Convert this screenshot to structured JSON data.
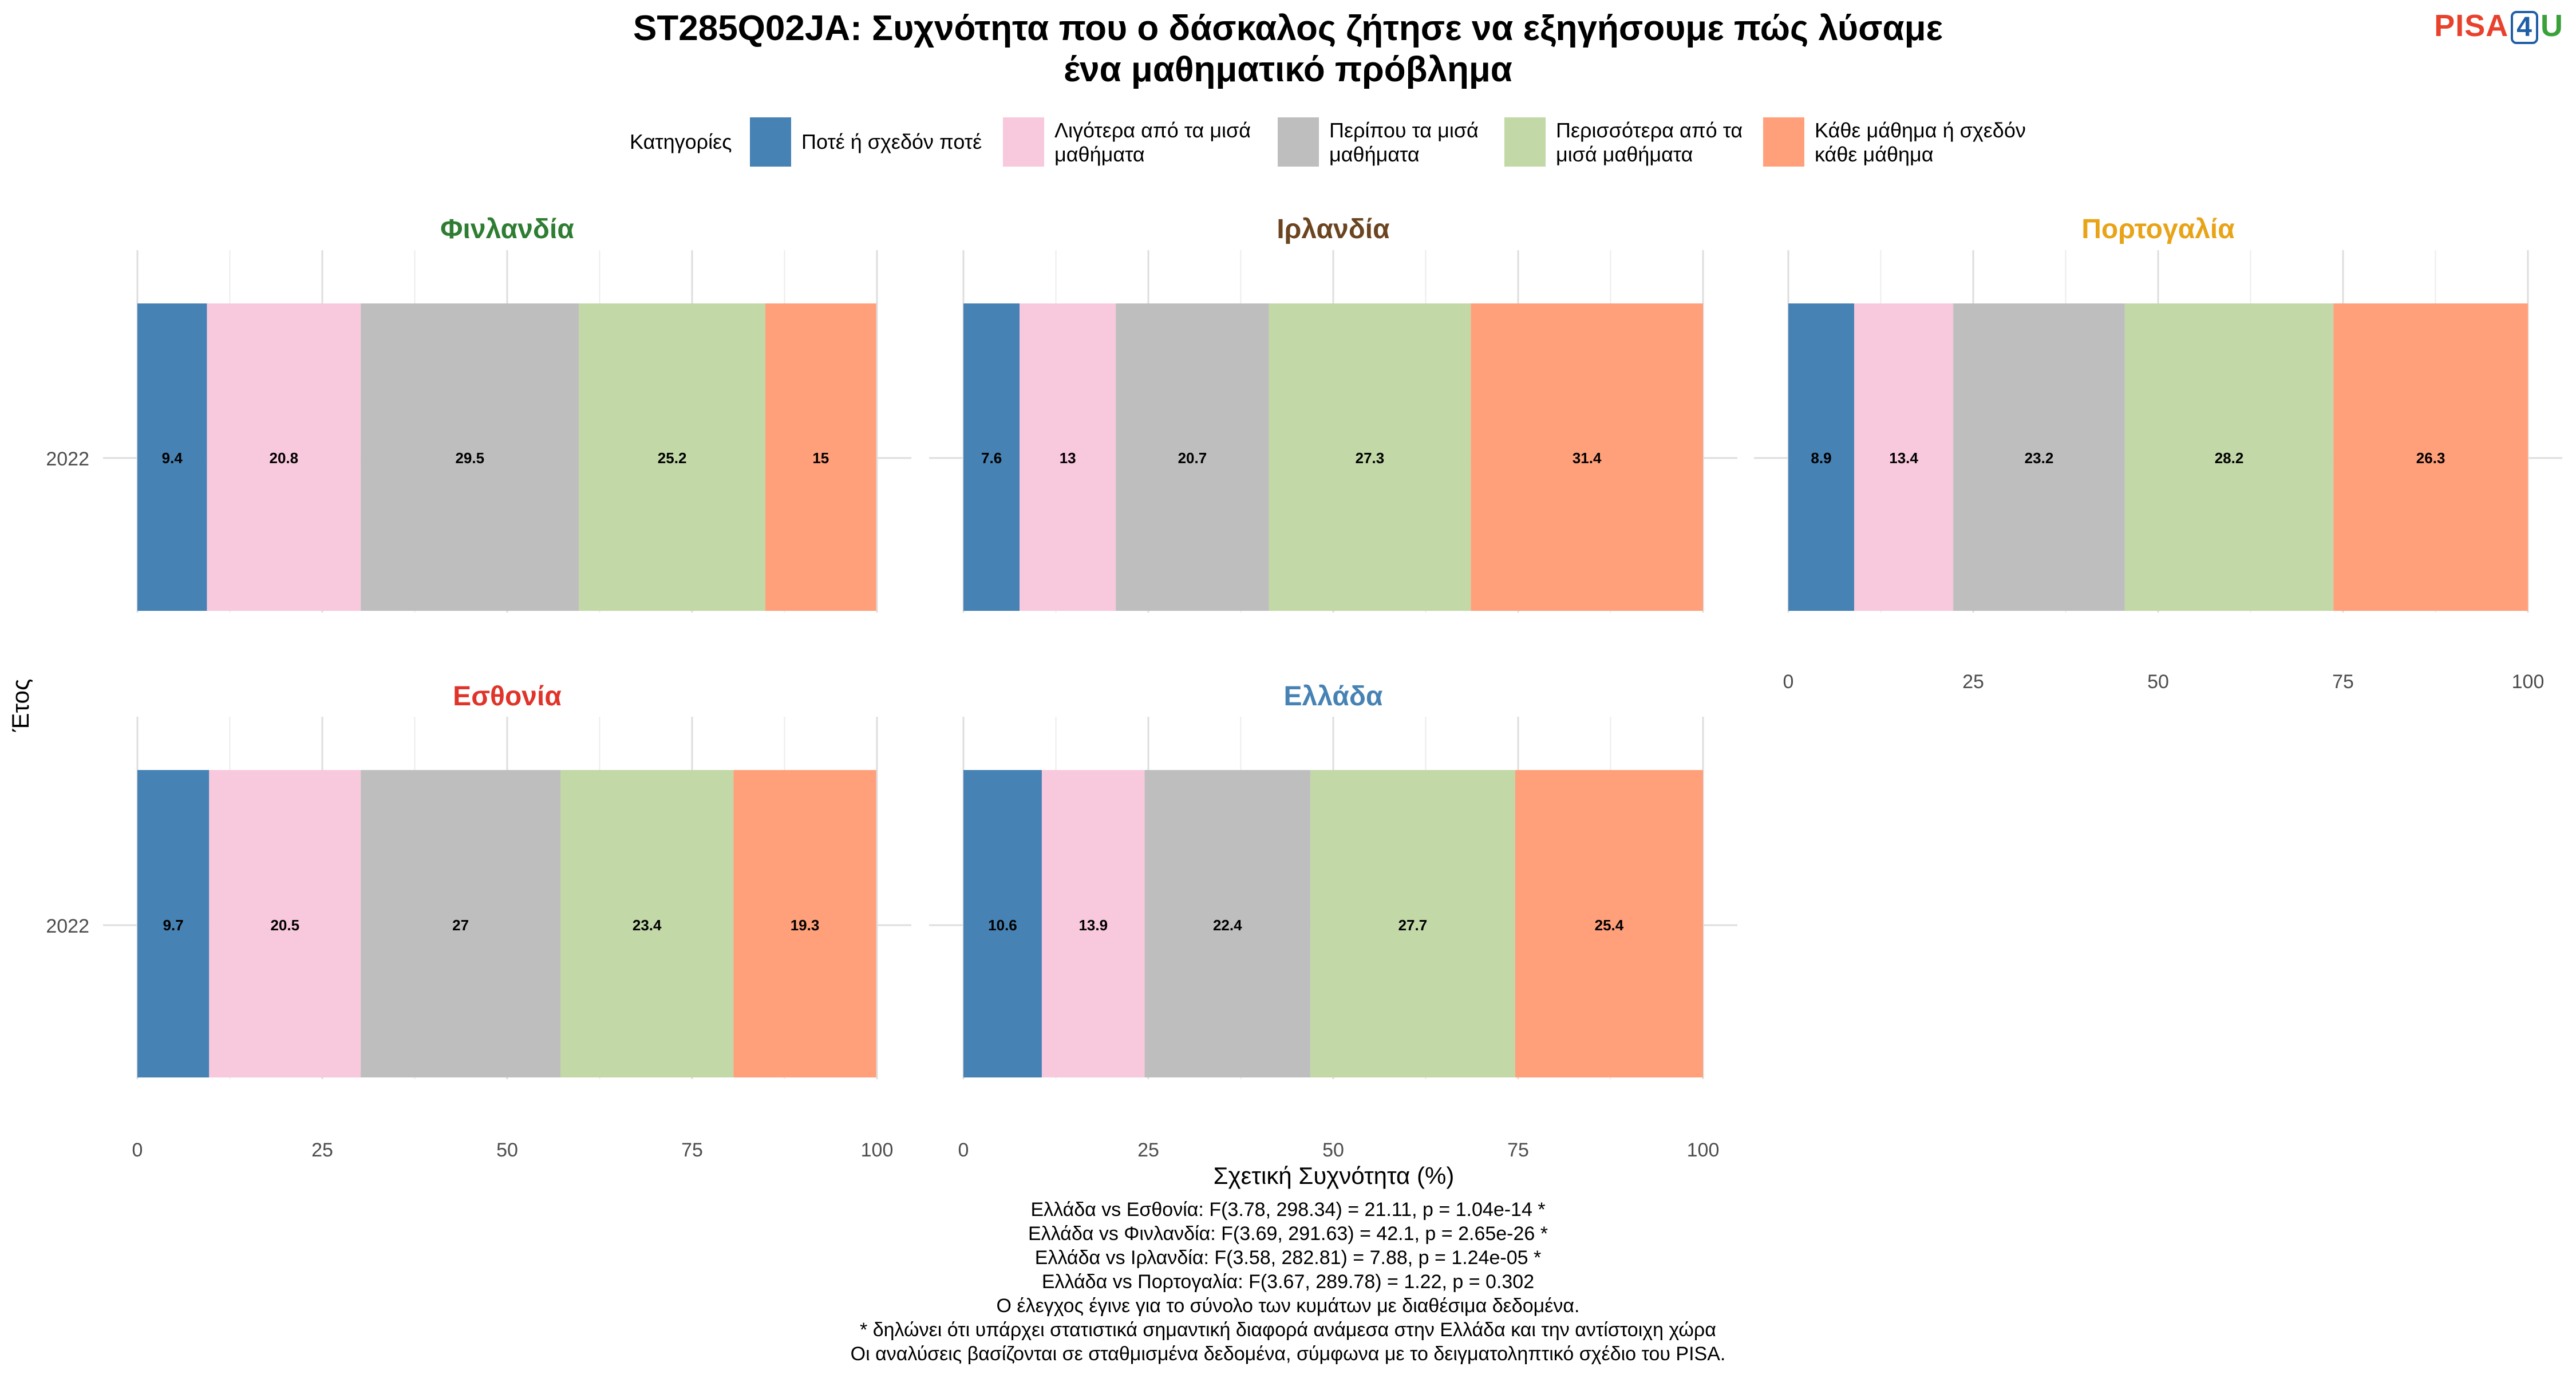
{
  "title_lines": [
    "ST285Q02JA: Συχνότητα που ο δάσκαλος ζήτησε να εξηγήσουμε πώς λύσαμε",
    "ένα μαθηματικό πρόβλημα"
  ],
  "logo": {
    "part1": "PISA",
    "part2": "4",
    "part3": "U"
  },
  "legend": {
    "title": "Κατηγορίες",
    "items": [
      {
        "lines": [
          "Ποτέ ή σχεδόν ποτέ"
        ],
        "color": "#4682b4"
      },
      {
        "lines": [
          "Λιγότερα από τα μισά",
          "μαθήματα"
        ],
        "color": "#f8c8dc"
      },
      {
        "lines": [
          "Περίπου τα μισά",
          "μαθήματα"
        ],
        "color": "#bebebe"
      },
      {
        "lines": [
          "Περισσότερα από τα",
          "μισά μαθήματα"
        ],
        "color": "#c2d8a6"
      },
      {
        "lines": [
          "Κάθε μάθημα ή σχεδόν",
          "κάθε μάθημα"
        ],
        "color": "#ffa07a"
      }
    ]
  },
  "chart_data": {
    "type": "bar",
    "orientation": "horizontal-stacked",
    "xlabel": "Σχετική Συχνότητα (%)",
    "ylabel": "Έτος",
    "xlim": [
      0,
      100
    ],
    "xticks": [
      0,
      25,
      50,
      75,
      100
    ],
    "categories": [
      "2022"
    ],
    "grid": true,
    "legend_position": "top",
    "series_names": [
      "Ποτέ ή σχεδόν ποτέ",
      "Λιγότερα από τα μισά μαθήματα",
      "Περίπου τα μισά μαθήματα",
      "Περισσότερα από τα μισά μαθήματα",
      "Κάθε μάθημα ή σχεδόν κάθε μάθημα"
    ],
    "panels": [
      {
        "name": "Φινλανδία",
        "title_color": "#2e7d32",
        "values": [
          9.4,
          20.8,
          29.5,
          25.2,
          15
        ],
        "labels": [
          "9.4",
          "20.8",
          "29.5",
          "25.2",
          "15"
        ]
      },
      {
        "name": "Ιρλανδία",
        "title_color": "#6b4420",
        "values": [
          7.6,
          13,
          20.7,
          27.3,
          31.4
        ],
        "labels": [
          "7.6",
          "13",
          "20.7",
          "27.3",
          "31.4"
        ]
      },
      {
        "name": "Πορτογαλία",
        "title_color": "#e8a317",
        "values": [
          8.9,
          13.4,
          23.2,
          28.2,
          26.3
        ],
        "labels": [
          "8.9",
          "13.4",
          "23.2",
          "28.2",
          "26.3"
        ]
      },
      {
        "name": "Εσθονία",
        "title_color": "#e0342a",
        "values": [
          9.7,
          20.5,
          27,
          23.4,
          19.3
        ],
        "labels": [
          "9.7",
          "20.5",
          "27",
          "23.4",
          "19.3"
        ]
      },
      {
        "name": "Ελλάδα",
        "title_color": "#4682b4",
        "values": [
          10.6,
          13.9,
          22.4,
          27.7,
          25.4
        ],
        "labels": [
          "10.6",
          "13.9",
          "22.4",
          "27.7",
          "25.4"
        ]
      }
    ]
  },
  "footnotes": [
    "Ελλάδα vs Εσθονία: F(3.78, 298.34) = 21.11, p = 1.04e-14 *",
    "Ελλάδα vs Φινλανδία: F(3.69, 291.63) = 42.1, p = 2.65e-26 *",
    "Ελλάδα vs Ιρλανδία: F(3.58, 282.81) = 7.88, p = 1.24e-05 *",
    "Ελλάδα vs Πορτογαλία: F(3.67, 289.78) = 1.22, p = 0.302",
    "Ο έλεγχος έγινε για το σύνολο των κυμάτων με διαθέσιμα δεδομένα.",
    "* δηλώνει ότι υπάρχει στατιστικά σημαντική διαφορά ανάμεσα στην Ελλάδα και την αντίστοιχη χώρα",
    "Οι αναλύσεις βασίζονται σε σταθμισμένα δεδομένα, σύμφωνα με το δειγματοληπτικό σχέδιο του PISA."
  ]
}
